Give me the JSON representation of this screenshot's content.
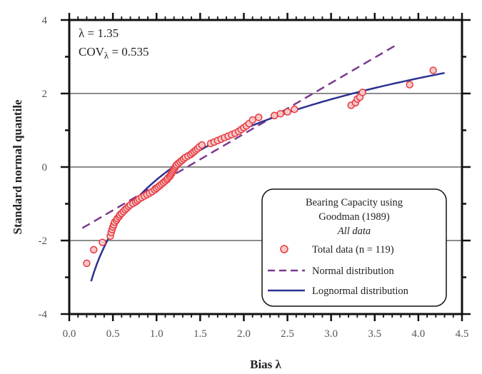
{
  "chart_data": {
    "type": "scatter",
    "title": "",
    "xlabel": "Bias λ",
    "ylabel": "Standard normal quantile",
    "xlim": [
      0,
      4.5
    ],
    "ylim": [
      -4,
      4
    ],
    "xticks": [
      "0.0",
      "0.5",
      "1.0",
      "1.5",
      "2.0",
      "2.5",
      "3.0",
      "3.5",
      "4.0",
      "4.5"
    ],
    "yticks": [
      "4",
      "2",
      "0",
      "-2",
      "-4"
    ],
    "gridlines_y": [
      2,
      0,
      -2
    ],
    "annotations": {
      "mean_label": "λ = 1.35",
      "cov_prefix": "COV",
      "cov_sub": "λ",
      "cov_value": " = 0.535"
    },
    "legend": {
      "placement": "bottom-right",
      "title_line1": "Bearing Capacity using",
      "title_line2": "Goodman (1989)",
      "title_line3": "All data",
      "entries": [
        "Total data (n = 119)",
        "Normal distribution",
        "Lognormal distribution"
      ]
    },
    "colors": {
      "points": "#e8393f",
      "point_fill": "#f6c9c9",
      "normal": "#7b3a8f",
      "lognormal": "#2e3191"
    },
    "fits": {
      "normal": {
        "mean": 1.35,
        "sd": 0.722,
        "x_range": [
          0.15,
          3.75
        ]
      },
      "lognormal": {
        "mu_ln": 0.174,
        "sigma_ln": 0.502,
        "x_range": [
          0.25,
          4.3
        ]
      }
    },
    "series": [
      {
        "name": "Total data (n = 119)",
        "points": [
          [
            0.2,
            -2.62
          ],
          [
            0.28,
            -2.25
          ],
          [
            0.38,
            -2.05
          ],
          [
            0.47,
            -1.88
          ],
          [
            0.48,
            -1.78
          ],
          [
            0.49,
            -1.7
          ],
          [
            0.5,
            -1.63
          ],
          [
            0.51,
            -1.57
          ],
          [
            0.52,
            -1.5
          ],
          [
            0.54,
            -1.45
          ],
          [
            0.55,
            -1.4
          ],
          [
            0.57,
            -1.35
          ],
          [
            0.58,
            -1.3
          ],
          [
            0.6,
            -1.26
          ],
          [
            0.62,
            -1.21
          ],
          [
            0.64,
            -1.16
          ],
          [
            0.66,
            -1.12
          ],
          [
            0.68,
            -1.07
          ],
          [
            0.7,
            -1.03
          ],
          [
            0.73,
            -0.99
          ],
          [
            0.76,
            -0.95
          ],
          [
            0.78,
            -0.91
          ],
          [
            0.8,
            -0.87
          ],
          [
            0.83,
            -0.83
          ],
          [
            0.86,
            -0.79
          ],
          [
            0.89,
            -0.75
          ],
          [
            0.92,
            -0.71
          ],
          [
            0.95,
            -0.67
          ],
          [
            0.98,
            -0.62
          ],
          [
            1.0,
            -0.58
          ],
          [
            1.02,
            -0.54
          ],
          [
            1.04,
            -0.5
          ],
          [
            1.06,
            -0.46
          ],
          [
            1.08,
            -0.42
          ],
          [
            1.1,
            -0.38
          ],
          [
            1.12,
            -0.34
          ],
          [
            1.13,
            -0.3
          ],
          [
            1.15,
            -0.26
          ],
          [
            1.16,
            -0.22
          ],
          [
            1.17,
            -0.18
          ],
          [
            1.18,
            -0.14
          ],
          [
            1.19,
            -0.1
          ],
          [
            1.2,
            -0.06
          ],
          [
            1.21,
            -0.02
          ],
          [
            1.22,
            0.02
          ],
          [
            1.23,
            0.06
          ],
          [
            1.25,
            0.1
          ],
          [
            1.27,
            0.14
          ],
          [
            1.29,
            0.18
          ],
          [
            1.31,
            0.22
          ],
          [
            1.33,
            0.26
          ],
          [
            1.36,
            0.3
          ],
          [
            1.39,
            0.34
          ],
          [
            1.41,
            0.38
          ],
          [
            1.43,
            0.42
          ],
          [
            1.45,
            0.46
          ],
          [
            1.47,
            0.5
          ],
          [
            1.49,
            0.55
          ],
          [
            1.52,
            0.6
          ],
          [
            1.62,
            0.64
          ],
          [
            1.66,
            0.68
          ],
          [
            1.7,
            0.72
          ],
          [
            1.74,
            0.76
          ],
          [
            1.78,
            0.8
          ],
          [
            1.82,
            0.84
          ],
          [
            1.86,
            0.88
          ],
          [
            1.9,
            0.92
          ],
          [
            1.94,
            0.97
          ],
          [
            1.97,
            1.02
          ],
          [
            2.0,
            1.07
          ],
          [
            2.03,
            1.12
          ],
          [
            2.06,
            1.18
          ],
          [
            2.1,
            1.28
          ],
          [
            2.17,
            1.35
          ],
          [
            2.35,
            1.4
          ],
          [
            2.42,
            1.45
          ],
          [
            2.5,
            1.5
          ],
          [
            2.58,
            1.57
          ],
          [
            3.23,
            1.68
          ],
          [
            3.28,
            1.75
          ],
          [
            3.3,
            1.85
          ],
          [
            3.33,
            1.9
          ],
          [
            3.36,
            2.03
          ],
          [
            3.9,
            2.24
          ],
          [
            4.17,
            2.63
          ]
        ]
      }
    ]
  }
}
